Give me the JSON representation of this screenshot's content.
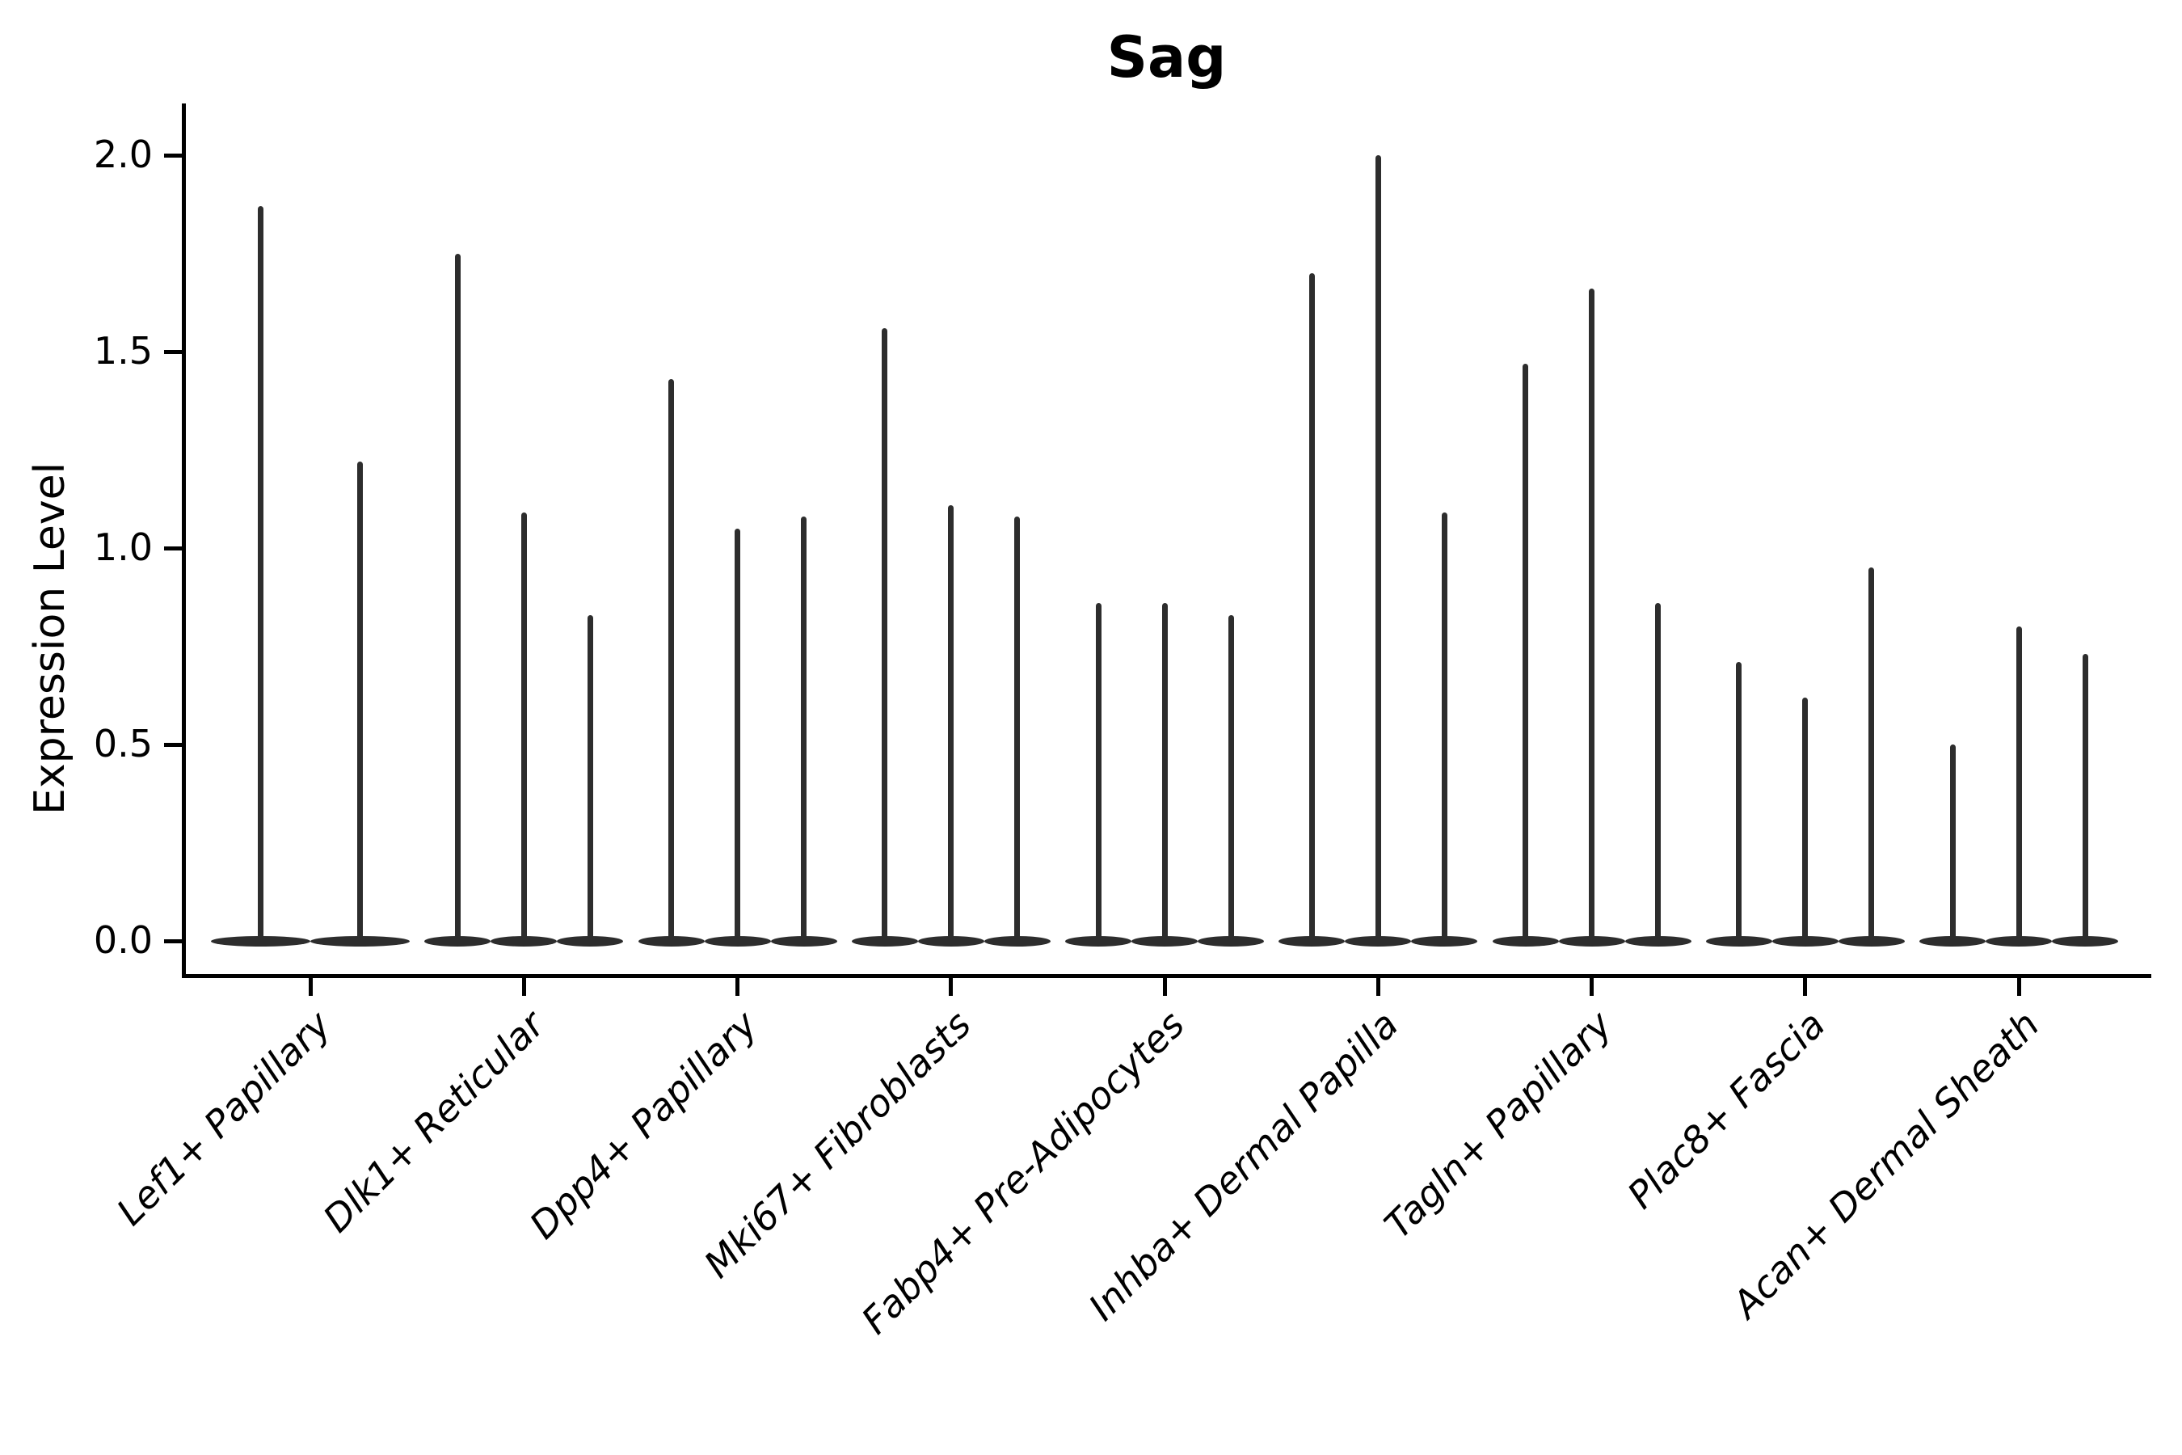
{
  "chart_data": {
    "type": "violin",
    "title": "Sag",
    "ylabel": "Expression Level",
    "xlabel": "",
    "ylim": [
      0.0,
      2.1
    ],
    "yticks": [
      0.0,
      0.5,
      1.0,
      1.5,
      2.0
    ],
    "ytick_labels": [
      "0.0",
      "0.5",
      "1.0",
      "1.5",
      "2.0"
    ],
    "categories": [
      "Lef1+ Papillary",
      "Dlk1+ Reticular",
      "Dpp4+ Papillary",
      "Mki67+ Fibroblasts",
      "Fabp4+ Pre-Adipocytes",
      "Inhba+ Dermal Papilla",
      "Tagln+ Papillary",
      "Plac8+ Fascia",
      "Acan+ Dermal Sheath"
    ],
    "groups": [
      {
        "label": "Lef1+ Papillary",
        "spike_heights": [
          1.87,
          1.22
        ]
      },
      {
        "label": "Dlk1+ Reticular",
        "spike_heights": [
          1.75,
          1.09,
          0.83
        ]
      },
      {
        "label": "Dpp4+ Papillary",
        "spike_heights": [
          1.43,
          1.05,
          1.08
        ]
      },
      {
        "label": "Mki67+ Fibroblasts",
        "spike_heights": [
          1.56,
          1.11,
          1.08
        ]
      },
      {
        "label": "Fabp4+ Pre-Adipocytes",
        "spike_heights": [
          0.86,
          0.86,
          0.83
        ]
      },
      {
        "label": "Inhba+ Dermal Papilla",
        "spike_heights": [
          1.7,
          2.0,
          1.09
        ]
      },
      {
        "label": "Tagln+ Papillary",
        "spike_heights": [
          1.47,
          1.66,
          0.86
        ]
      },
      {
        "label": "Plac8+ Fascia",
        "spike_heights": [
          0.71,
          0.62,
          0.95
        ]
      },
      {
        "label": "Acan+ Dermal Sheath",
        "spike_heights": [
          0.5,
          0.8,
          0.73
        ]
      }
    ],
    "violin_color": "#2d2d2d",
    "axis_color": "#000000",
    "x_label_rotation_deg": 45,
    "x_label_style": "italic",
    "grid": false,
    "legend": "none"
  }
}
